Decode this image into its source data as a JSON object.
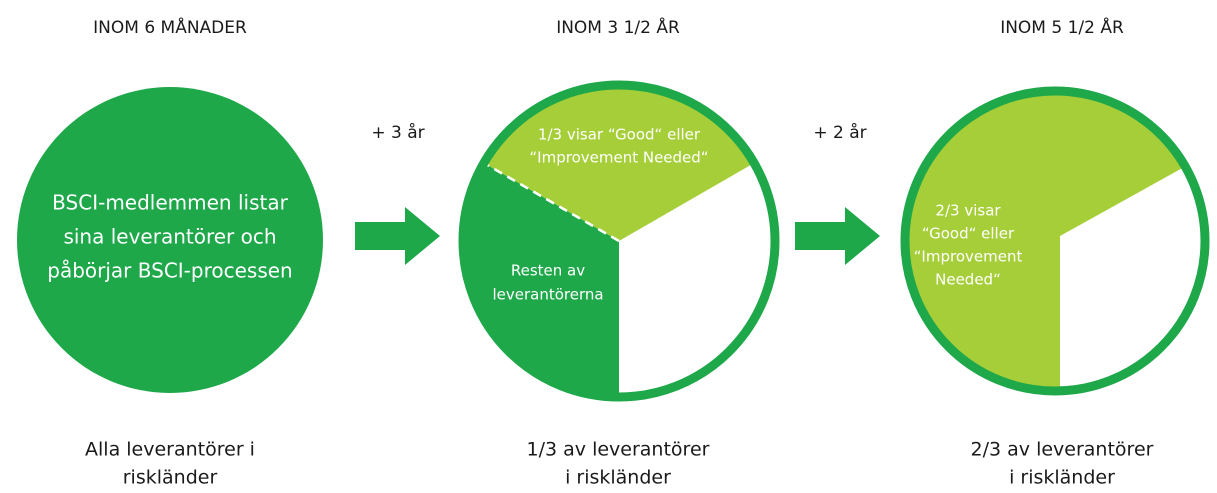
{
  "stages": [
    {
      "heading": "INOM 6 MÅNADER",
      "circle_lines": [
        "BSCI-medlemmen listar",
        "sina leverantörer och",
        "påbörjar BSCI-processen"
      ],
      "caption_lines": [
        "Alla leverantörer i",
        "riskländer"
      ]
    },
    {
      "heading": "INOM 3 1/2 ÅR",
      "good_lines": [
        "1/3 visar “Good“ eller",
        "“Improvement Needed“"
      ],
      "rest_lines": [
        "Resten av",
        "leverantörerna"
      ],
      "caption_lines": [
        "1/3 av leverantörer",
        "i riskländer"
      ]
    },
    {
      "heading": "INOM 5 1/2 ÅR",
      "good_lines": [
        "2/3 visar",
        "“Good“ eller",
        "“Improvement",
        "Needed“"
      ],
      "caption_lines": [
        "2/3 av leverantörer",
        "i riskländer"
      ]
    }
  ],
  "transitions": [
    "+ 3 år",
    "+ 2 år"
  ]
}
